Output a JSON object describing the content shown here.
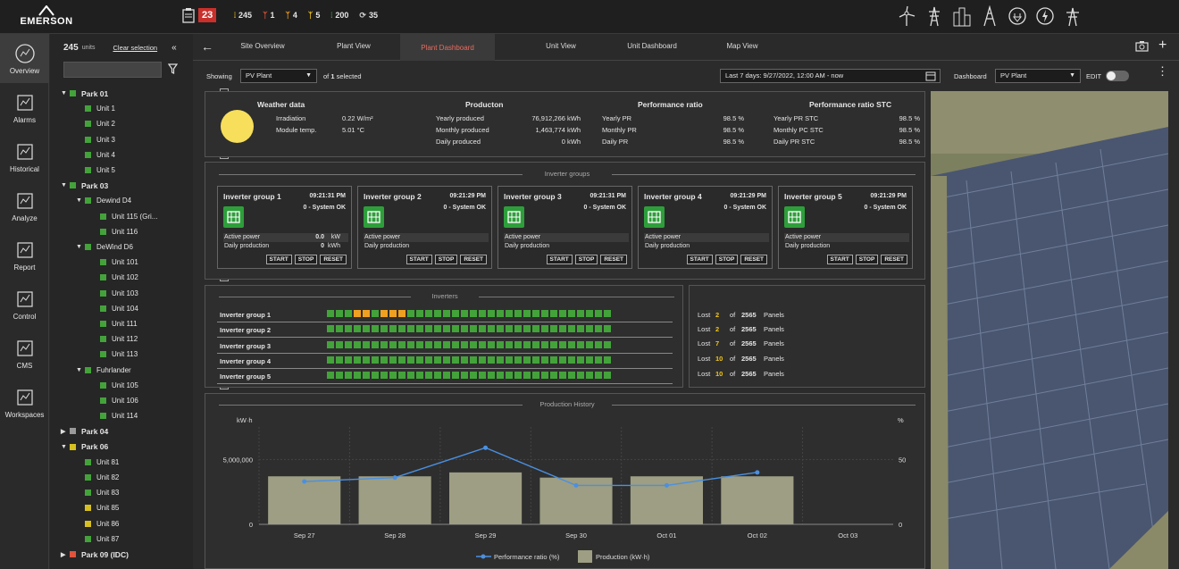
{
  "brand": {
    "name": "EMERSON"
  },
  "alarms": {
    "count": "23"
  },
  "stats": [
    {
      "icon": "bars-icon",
      "value": "245",
      "color": "#f0c419"
    },
    {
      "icon": "turbine-icon",
      "value": "1",
      "color": "#e0533d"
    },
    {
      "icon": "turbine-icon",
      "value": "4",
      "color": "#f0a020"
    },
    {
      "icon": "turbine-icon",
      "value": "5",
      "color": "#f0c419"
    },
    {
      "icon": "bars-icon",
      "value": "200",
      "color": "#43a33a"
    },
    {
      "icon": "refresh-icon",
      "value": "35",
      "color": "#ccc"
    }
  ],
  "nav": [
    "Overview",
    "Alarms",
    "Historical",
    "Analyze",
    "Report",
    "Control",
    "CMS",
    "Workspaces"
  ],
  "tree": {
    "units_count": "245",
    "units_label": "units",
    "clear": "Clear selection",
    "rows": [
      {
        "label": "Park 01",
        "level": 0,
        "bold": true,
        "color": "#43a33a",
        "expand": "down"
      },
      {
        "label": "Unit 1",
        "level": 1,
        "color": "#43a33a"
      },
      {
        "label": "Unit 2",
        "level": 1,
        "color": "#43a33a"
      },
      {
        "label": "Unit 3",
        "level": 1,
        "color": "#43a33a"
      },
      {
        "label": "Unit 4",
        "level": 1,
        "color": "#43a33a"
      },
      {
        "label": "Unit 5",
        "level": 1,
        "color": "#43a33a"
      },
      {
        "label": "Park 03",
        "level": 0,
        "bold": true,
        "color": "#43a33a",
        "expand": "down"
      },
      {
        "label": "Dewind D4",
        "level": 1,
        "bold": false,
        "color": "#43a33a",
        "expand": "down",
        "group": true
      },
      {
        "label": "Unit 115 (Gri...",
        "level": 2,
        "color": "#43a33a"
      },
      {
        "label": "Unit 116",
        "level": 2,
        "color": "#43a33a"
      },
      {
        "label": "DeWind D6",
        "level": 1,
        "color": "#43a33a",
        "expand": "down",
        "group": true
      },
      {
        "label": "Unit 101",
        "level": 2,
        "color": "#43a33a"
      },
      {
        "label": "Unit 102",
        "level": 2,
        "color": "#43a33a"
      },
      {
        "label": "Unit 103",
        "level": 2,
        "color": "#43a33a"
      },
      {
        "label": "Unit 104",
        "level": 2,
        "color": "#43a33a"
      },
      {
        "label": "Unit 111",
        "level": 2,
        "color": "#43a33a"
      },
      {
        "label": "Unit 112",
        "level": 2,
        "color": "#43a33a"
      },
      {
        "label": "Unit 113",
        "level": 2,
        "color": "#43a33a"
      },
      {
        "label": "Fuhrlander",
        "level": 1,
        "color": "#43a33a",
        "expand": "down",
        "group": true
      },
      {
        "label": "Unit 105",
        "level": 2,
        "color": "#43a33a"
      },
      {
        "label": "Unit 106",
        "level": 2,
        "color": "#43a33a"
      },
      {
        "label": "Unit 114",
        "level": 2,
        "color": "#43a33a"
      },
      {
        "label": "Park 04",
        "level": 0,
        "bold": true,
        "color": "#9a9a9a",
        "expand": "right"
      },
      {
        "label": "Park 06",
        "level": 0,
        "bold": true,
        "color": "#d6c020",
        "expand": "down"
      },
      {
        "label": "Unit 81",
        "level": 1,
        "color": "#43a33a"
      },
      {
        "label": "Unit 82",
        "level": 1,
        "color": "#43a33a"
      },
      {
        "label": "Unit 83",
        "level": 1,
        "color": "#43a33a"
      },
      {
        "label": "Unit 85",
        "level": 1,
        "color": "#d6c020"
      },
      {
        "label": "Unit 86",
        "level": 1,
        "color": "#d6c020"
      },
      {
        "label": "Unit 87",
        "level": 1,
        "color": "#43a33a"
      },
      {
        "label": "Park 09 (IDC)",
        "level": 0,
        "bold": true,
        "color": "#e0533d",
        "expand": "right"
      }
    ]
  },
  "tabs": [
    "Site Overview",
    "Plant View",
    "Plant Dashboard",
    "Unit View",
    "Unit Dashboard",
    "Map View"
  ],
  "toolbar": {
    "showing": "Showing",
    "plant": "PV Plant",
    "selected_pre": "of",
    "selected_n": "1",
    "selected_post": "selected",
    "range": "Last 7 days:  9/27/2022, 12:00 AM - now",
    "dashboard": "Dashboard",
    "dashboard_value": "PV Plant",
    "edit": "EDIT"
  },
  "weather": {
    "title": "Weather data",
    "rows": [
      {
        "k": "Irradiation",
        "v": "0.22 W/m²"
      },
      {
        "k": "Module temp.",
        "v": "5.01 °C"
      }
    ]
  },
  "production": {
    "title": "Producton",
    "rows": [
      {
        "k": "Yearly produced",
        "v": "76,912,266 kWh"
      },
      {
        "k": "Monthly produced",
        "v": "1,463,774 kWh"
      },
      {
        "k": "Daily produced",
        "v": "0 kWh"
      }
    ]
  },
  "pr": {
    "title": "Performance ratio",
    "rows": [
      {
        "k": "Yearly PR",
        "v": "98.5 %"
      },
      {
        "k": "Monthly PR",
        "v": "98.5 %"
      },
      {
        "k": "Daily PR",
        "v": "98.5 %"
      }
    ]
  },
  "prstc": {
    "title": "Performance ratio STC",
    "rows": [
      {
        "k": "Yearly PR STC",
        "v": "98.5 %"
      },
      {
        "k": "Monthly PC STC",
        "v": "98.5 %"
      },
      {
        "k": "Daily PR STC",
        "v": "98.5 %"
      }
    ]
  },
  "inverter_groups_title": "Inverter groups",
  "inverter_groups": [
    {
      "name": "Inverter group 1",
      "time": "09:21:31 PM",
      "status": "0 - System OK",
      "ap_label": "Active power",
      "ap": "0.0",
      "ap_u": "kW",
      "dp_label": "Daily production",
      "dp": "0",
      "dp_u": "kWh"
    },
    {
      "name": "Inverter group 2",
      "time": "09:21:29 PM",
      "status": "0 - System OK",
      "ap_label": "Active power",
      "ap": "",
      "ap_u": "",
      "dp_label": "Daily production",
      "dp": "",
      "dp_u": ""
    },
    {
      "name": "Inverter group 3",
      "time": "09:21:31 PM",
      "status": "0 - System OK",
      "ap_label": "Active power",
      "ap": "",
      "ap_u": "",
      "dp_label": "Daily production",
      "dp": "",
      "dp_u": ""
    },
    {
      "name": "Inverter group 4",
      "time": "09:21:29 PM",
      "status": "0 - System OK",
      "ap_label": "Active power",
      "ap": "",
      "ap_u": "",
      "dp_label": "Daily production",
      "dp": "",
      "dp_u": ""
    },
    {
      "name": "Inverter group 5",
      "time": "09:21:29 PM",
      "status": "0 - System OK",
      "ap_label": "Active power",
      "ap": "",
      "ap_u": "",
      "dp_label": "Daily production",
      "dp": "",
      "dp_u": ""
    }
  ],
  "buttons": {
    "start": "START",
    "stop": "STOP",
    "reset": "RESET"
  },
  "inverters_title": "Inverters",
  "inverters": [
    {
      "name": "Inverter group 1",
      "cells": [
        "g",
        "g",
        "g",
        "o",
        "o",
        "g",
        "o",
        "o",
        "o",
        "g",
        "g",
        "g",
        "g",
        "g",
        "g",
        "g",
        "g",
        "g",
        "g",
        "g",
        "g",
        "g",
        "g",
        "g",
        "g",
        "g",
        "g",
        "g",
        "g",
        "g",
        "g",
        "g"
      ]
    },
    {
      "name": "Inverter group 2",
      "cells": "g32"
    },
    {
      "name": "Inverter group 3",
      "cells": "g32"
    },
    {
      "name": "Inverter group 4",
      "cells": "g32"
    },
    {
      "name": "Inverter group 5",
      "cells": "g32"
    }
  ],
  "lost": [
    {
      "a": "Lost",
      "n": "2",
      "of": "of",
      "total": "2565",
      "p": "Panels"
    },
    {
      "a": "Lost",
      "n": "2",
      "of": "of",
      "total": "2565",
      "p": "Panels"
    },
    {
      "a": "Lost",
      "n": "7",
      "of": "of",
      "total": "2565",
      "p": "Panels"
    },
    {
      "a": "Lost",
      "n": "10",
      "of": "of",
      "total": "2565",
      "p": "Panels"
    },
    {
      "a": "Lost",
      "n": "10",
      "of": "of",
      "total": "2565",
      "p": "Panels"
    }
  ],
  "colors": {
    "ok": "#43a33a",
    "warn": "#f0a020",
    "accent": "#e86b5f",
    "bar": "#9d9e83",
    "line": "#4a90e2"
  },
  "chart_data": {
    "type": "bar",
    "title": "Production History",
    "ylabel": "kW·h",
    "y2label": "%",
    "categories": [
      "Sep 27",
      "Sep 28",
      "Sep 29",
      "Sep 30",
      "Oct 01",
      "Oct 02",
      "Oct 03"
    ],
    "yticks": [
      "5,000,000",
      "0"
    ],
    "y2ticks": [
      "50",
      "0"
    ],
    "ylim": [
      0,
      7500000
    ],
    "y2lim": [
      0,
      75
    ],
    "series": [
      {
        "name": "Production (kW·h)",
        "type": "bar",
        "values": [
          3700000,
          3700000,
          4000000,
          3600000,
          3700000,
          3700000,
          null
        ]
      },
      {
        "name": "Performance ratio (%)",
        "type": "line",
        "values": [
          33,
          36,
          59,
          30,
          30,
          40,
          null
        ]
      }
    ],
    "legend": "bottom"
  }
}
